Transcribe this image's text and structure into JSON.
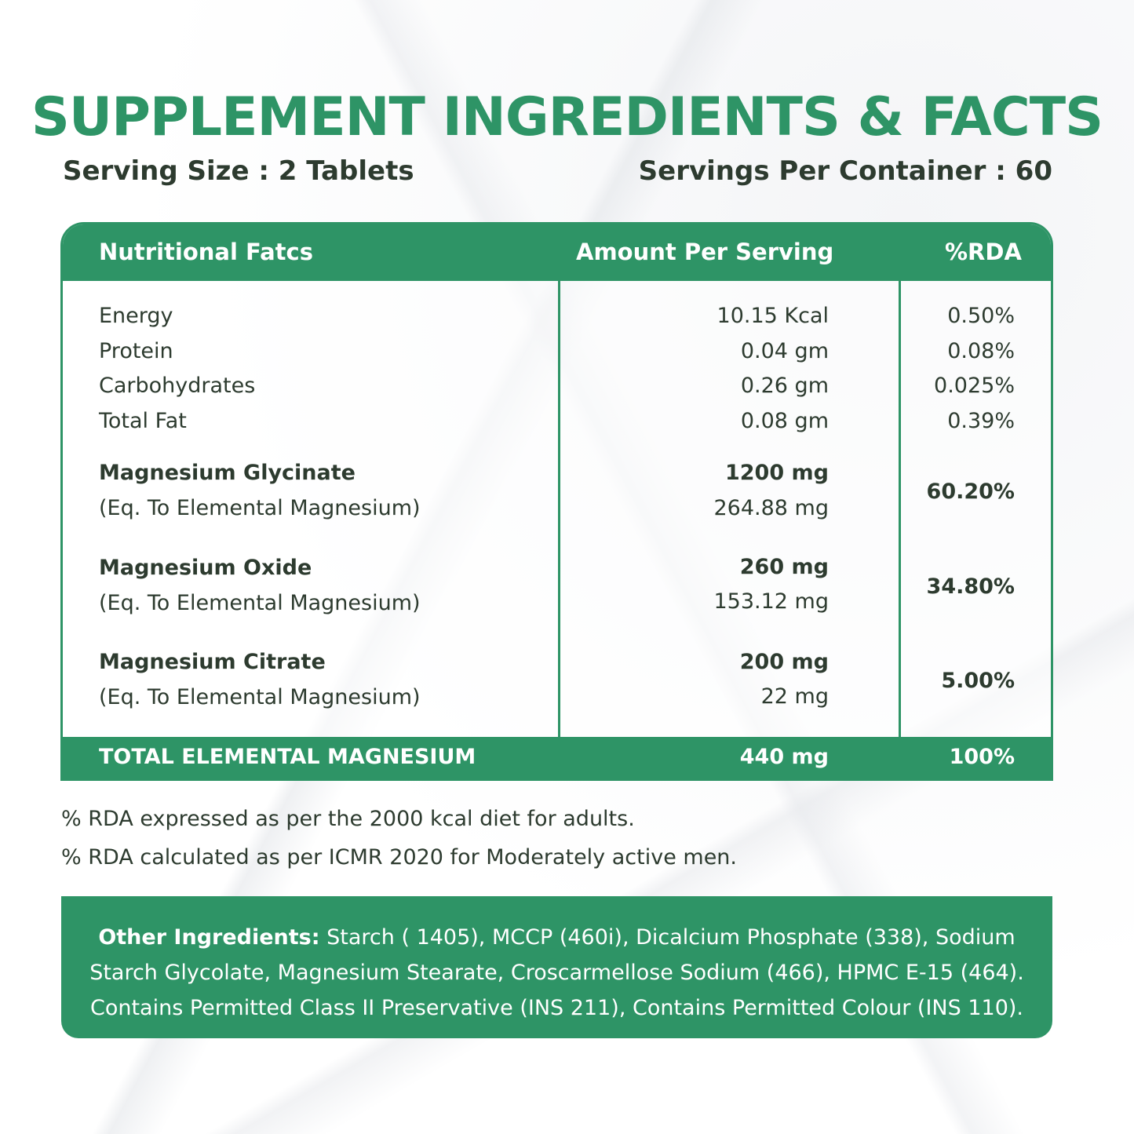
{
  "title": "SUPPLEMENT INGREDIENTS & FACTS",
  "serving_size": "Serving Size : 2 Tablets",
  "servings_per_container": "Servings Per Container : 60",
  "table": {
    "headers": [
      "Nutritional Fatcs",
      "Amount Per Serving",
      "%RDA"
    ],
    "basic_rows": [
      {
        "name": "Energy",
        "amount": "10.15 Kcal",
        "rda": "0.50%"
      },
      {
        "name": "Protein",
        "amount": "0.04 gm",
        "rda": "0.08%"
      },
      {
        "name": "Carbohydrates",
        "amount": "0.26 gm",
        "rda": "0.025%"
      },
      {
        "name": "Total Fat",
        "amount": "0.08 gm",
        "rda": "0.39%"
      }
    ],
    "mineral_rows": [
      {
        "name": "Magnesium Glycinate",
        "sub": "(Eq. To Elemental Magnesium)",
        "amount": "1200 mg",
        "sub_amount": "264.88 mg",
        "rda": "60.20%"
      },
      {
        "name": "Magnesium Oxide",
        "sub": "(Eq. To Elemental Magnesium)",
        "amount": "260 mg",
        "sub_amount": "153.12 mg",
        "rda": "34.80%"
      },
      {
        "name": "Magnesium Citrate",
        "sub": "(Eq. To Elemental Magnesium)",
        "amount": "200 mg",
        "sub_amount": "22 mg",
        "rda": "5.00%"
      }
    ],
    "total": {
      "label": "TOTAL ELEMENTAL MAGNESIUM",
      "amount": "440 mg",
      "rda": "100%"
    }
  },
  "notes": [
    "% RDA expressed as per the 2000 kcal diet for adults.",
    "% RDA calculated as per ICMR 2020 for Moderately active men."
  ],
  "other_ingredients": {
    "label": "Other Ingredients:",
    "text": " Starch ( 1405), MCCP (460i), Dicalcium Phosphate (338), Sodium Starch Glycolate, Magnesium Stearate, Croscarmellose Sodium (466), HPMC E-15 (464). Contains Permitted Class II Preservative (INS 211), Contains Permitted Colour (INS 110)."
  },
  "colors": {
    "accent": "#2e9466",
    "text": "#2d3b2f",
    "background": "#fbfbfc"
  }
}
